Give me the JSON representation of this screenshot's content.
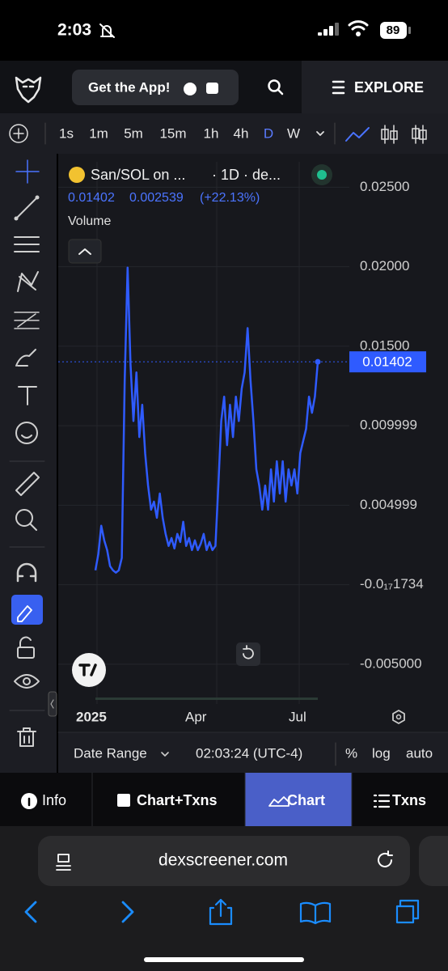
{
  "status_bar": {
    "time": "2:03",
    "battery": "89"
  },
  "header": {
    "get_app": "Get the App!",
    "explore": "EXPLORE"
  },
  "timeframes": [
    "1s",
    "1m",
    "5m",
    "15m",
    "1h",
    "4h",
    "D",
    "W"
  ],
  "legend": {
    "symbol": "San/SOL on ...",
    "interval": "· 1D · de...",
    "change": "0.002539",
    "change_percent": "(+22.13%)",
    "volume": "Volume"
  },
  "chart_data": {
    "type": "line",
    "series": [
      {
        "color": "#2f5bff",
        "values": [
          0.00091,
          0.00193,
          0.00371,
          0.00279,
          0.00218,
          0.00117,
          0.00091,
          0.00076,
          0.00091,
          0.00168,
          0.01284,
          0.01995,
          0.01386,
          0.0103,
          0.01335,
          0.00929,
          0.01132,
          0.00827,
          0.00624,
          0.00472,
          0.00523,
          0.00421,
          0.00574,
          0.00421,
          0.0032,
          0.00244,
          0.00294,
          0.00228,
          0.0032,
          0.00269,
          0.00396,
          0.00244,
          0.00294,
          0.00218,
          0.00279,
          0.00218,
          0.00259,
          0.0032,
          0.00218,
          0.00269,
          0.00218,
          0.00244,
          0.00624,
          0.0103,
          0.01183,
          0.00878,
          0.01132,
          0.00929,
          0.01183,
          0.0103,
          0.01234,
          0.01335,
          0.01614,
          0.01284,
          0.0103,
          0.00726,
          0.00624,
          0.00472,
          0.00624,
          0.00472,
          0.00726,
          0.00523,
          0.00777,
          0.00574,
          0.00777,
          0.00523,
          0.00726,
          0.00624,
          0.00726,
          0.00574,
          0.00827,
          0.00904,
          0.0098,
          0.01183,
          0.01081,
          0.01183,
          0.01402
        ]
      }
    ],
    "ylim": [
      -0.0075,
      0.0266
    ],
    "yticks": [
      {
        "value": 0.025,
        "label": "0.02500"
      },
      {
        "value": 0.02,
        "label": "0.02000"
      },
      {
        "value": 0.015,
        "label": "0.01500"
      },
      {
        "value": 0.009999,
        "label": "0.009999"
      },
      {
        "value": 0.004999,
        "label": "0.004999"
      },
      {
        "value": -1.734e-18,
        "label": "-0.0₁₇1734"
      },
      {
        "value": -0.005,
        "label": "-0.005000"
      }
    ],
    "x_labels": [
      "2025",
      "Apr",
      "Jul"
    ],
    "grid": true
  },
  "footer": {
    "date_range": "Date Range",
    "clock": "02:03:24 (UTC-4)",
    "percent": "%",
    "log": "log",
    "auto": "auto"
  },
  "tabs": [
    "Info",
    "Chart+Txns",
    "Chart",
    "Txns"
  ],
  "browser": {
    "url": "dexscreener.com"
  }
}
